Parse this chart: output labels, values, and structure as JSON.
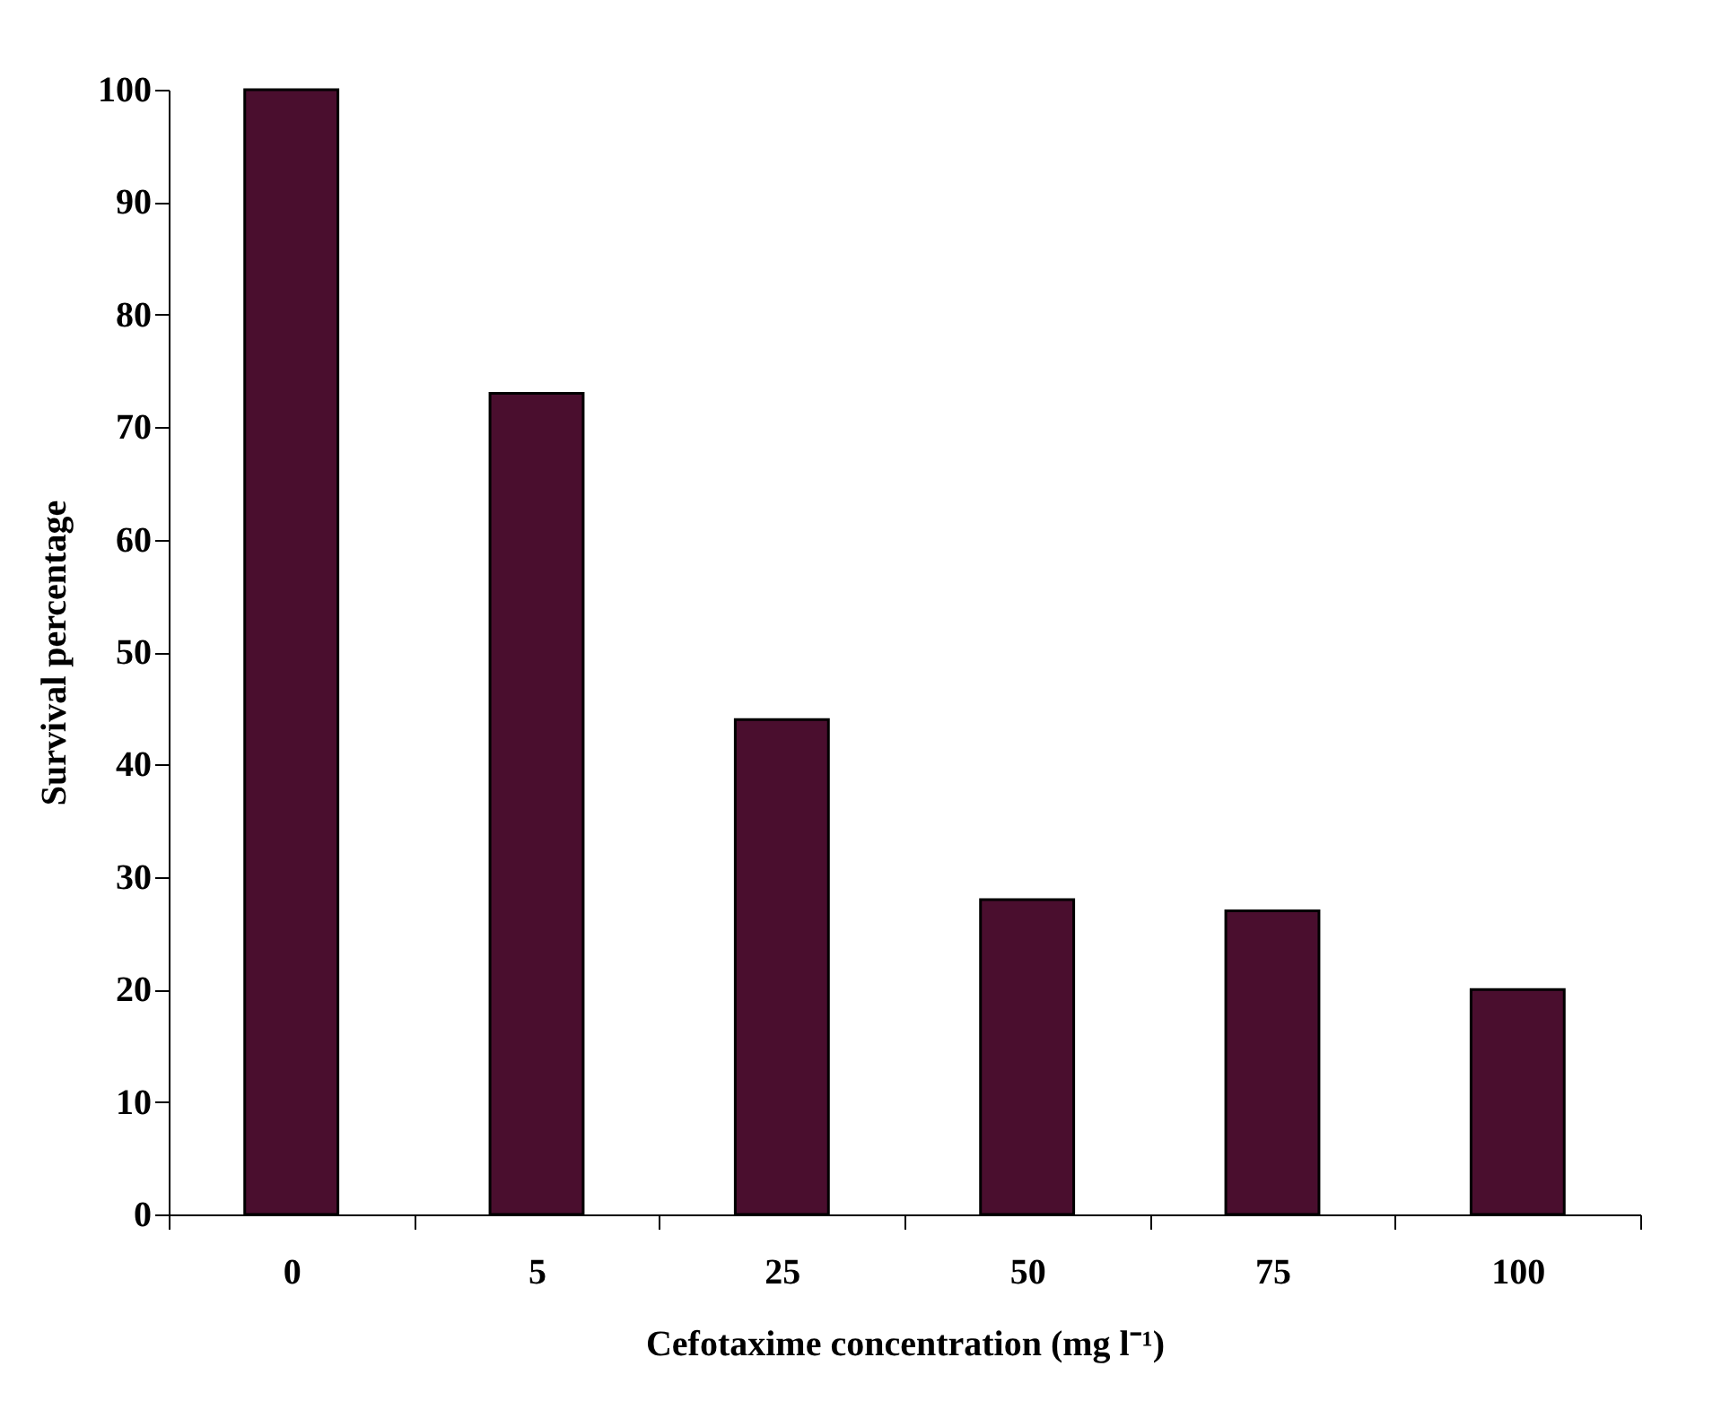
{
  "chart_data": {
    "type": "bar",
    "xlabel": "Cefotaxime concentration (mg l⁻¹)",
    "ylabel": "Survival percentage",
    "categories": [
      "0",
      "5",
      "25",
      "50",
      "75",
      "100"
    ],
    "values": [
      100,
      73,
      44,
      28,
      27,
      20
    ],
    "color": "#4a0e2e",
    "ylim": [
      0,
      100
    ],
    "yticks": [
      0,
      10,
      20,
      30,
      40,
      50,
      60,
      70,
      80,
      90,
      100
    ],
    "grid": false
  }
}
